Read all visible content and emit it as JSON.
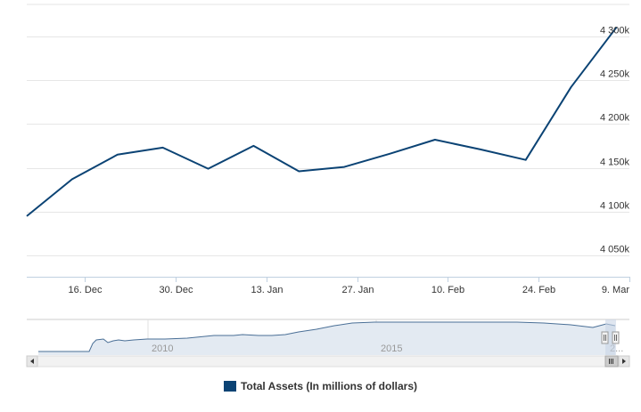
{
  "colors": {
    "series": "#0b4374",
    "grid": "#e6e6e6",
    "navigator_fill": "#e3eaf2",
    "navigator_line": "#4a6f96",
    "scrollbar": "#f2f2f2",
    "handle": "#c9d6e6"
  },
  "navigator": {
    "year_labels": [
      "2010",
      "2015",
      "2..."
    ]
  },
  "chart_data": {
    "type": "line",
    "title": "",
    "xlabel": "",
    "ylabel": "",
    "x_tick_labels": [
      "16. Dec",
      "30. Dec",
      "13. Jan",
      "27. Jan",
      "10. Feb",
      "24. Feb",
      "9. Mar"
    ],
    "y_tick_labels": [
      "4 050k",
      "4 100k",
      "4 150k",
      "4 200k",
      "4 250k",
      "4 300k"
    ],
    "ylim": [
      4026000,
      4336000
    ],
    "x_range": [
      "2011-12-07",
      "2012-03-09"
    ],
    "grid": true,
    "legend_position": "bottom-center",
    "series": [
      {
        "name": "Total Assets (In millions of dollars)",
        "x": [
          "2011-12-07",
          "2011-12-14",
          "2011-12-21",
          "2011-12-28",
          "2012-01-04",
          "2012-01-11",
          "2012-01-18",
          "2012-01-25",
          "2012-02-01",
          "2012-02-08",
          "2012-02-15",
          "2012-02-22",
          "2012-02-29",
          "2012-03-07"
        ],
        "values": [
          4095000,
          4137000,
          4165000,
          4173000,
          4149000,
          4175000,
          4146000,
          4151000,
          4166000,
          4182000,
          4171000,
          4159000,
          4242000,
          4310000
        ]
      }
    ]
  }
}
